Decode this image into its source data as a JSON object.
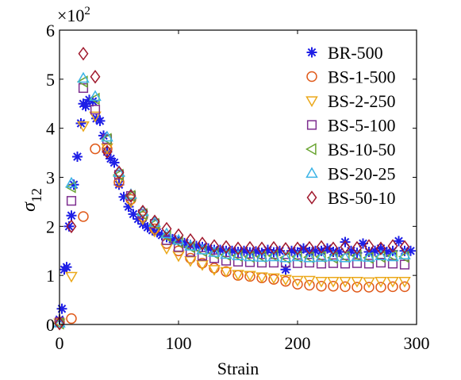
{
  "chart_data": {
    "type": "scatter",
    "xlabel": "Strain",
    "ylabel_main": "σ",
    "ylabel_sub": "12",
    "y_exponent_label": "×10",
    "y_exponent_power": "2",
    "xlim": [
      0,
      300
    ],
    "ylim": [
      0,
      6
    ],
    "xticks": [
      "0",
      "100",
      "200",
      "300"
    ],
    "yticks": [
      "0",
      "1",
      "2",
      "3",
      "4",
      "5",
      "6"
    ],
    "grid": false,
    "legend_position": "top-right",
    "series": [
      {
        "name": "BR-500",
        "marker": "asterisk",
        "color": "#1f1fe6",
        "x": [
          0,
          2,
          4,
          6,
          8,
          10,
          12,
          15,
          18,
          20,
          22,
          25,
          28,
          31,
          34,
          37,
          40,
          43,
          46,
          50,
          54,
          58,
          62,
          66,
          70,
          74,
          78,
          82,
          86,
          90,
          95,
          100,
          105,
          110,
          115,
          120,
          125,
          130,
          135,
          140,
          145,
          150,
          155,
          160,
          165,
          170,
          175,
          180,
          185,
          190,
          195,
          200,
          205,
          210,
          215,
          220,
          225,
          230,
          235,
          240,
          245,
          250,
          255,
          260,
          265,
          270,
          275,
          280,
          285,
          290,
          295
        ],
        "y": [
          0.1,
          0.32,
          1.12,
          1.17,
          2.0,
          2.22,
          2.85,
          3.42,
          4.1,
          4.5,
          4.45,
          4.58,
          4.55,
          4.2,
          4.15,
          3.85,
          3.52,
          3.38,
          3.3,
          2.85,
          2.6,
          2.4,
          2.25,
          2.15,
          2.05,
          1.98,
          1.92,
          1.88,
          1.82,
          1.78,
          1.74,
          1.7,
          1.66,
          1.62,
          1.6,
          1.58,
          1.55,
          1.52,
          1.52,
          1.5,
          1.5,
          1.48,
          1.5,
          1.47,
          1.49,
          1.46,
          1.52,
          1.47,
          1.5,
          1.12,
          1.5,
          1.47,
          1.55,
          1.48,
          1.5,
          1.5,
          1.55,
          1.48,
          1.48,
          1.68,
          1.5,
          1.46,
          1.65,
          1.48,
          1.5,
          1.55,
          1.48,
          1.5,
          1.7,
          1.5,
          1.5
        ]
      },
      {
        "name": "BS-1-500",
        "marker": "circle",
        "color": "#e05a1a",
        "x": [
          0,
          10,
          20,
          30,
          40,
          50,
          60,
          70,
          80,
          90,
          100,
          110,
          120,
          130,
          140,
          150,
          160,
          170,
          180,
          190,
          200,
          210,
          220,
          230,
          240,
          250,
          260,
          270,
          280,
          290
        ],
        "y": [
          0.05,
          0.12,
          2.2,
          3.58,
          3.58,
          2.9,
          2.55,
          2.2,
          1.95,
          1.65,
          1.5,
          1.35,
          1.25,
          1.15,
          1.08,
          1.0,
          0.98,
          0.95,
          0.92,
          0.88,
          0.82,
          0.8,
          0.78,
          0.78,
          0.77,
          0.76,
          0.76,
          0.76,
          0.77,
          0.77
        ]
      },
      {
        "name": "BS-2-250",
        "marker": "triangle-down",
        "color": "#eba81a",
        "x": [
          0,
          10,
          20,
          30,
          40,
          50,
          60,
          70,
          80,
          90,
          100,
          110,
          120,
          130,
          140,
          150,
          160,
          170,
          180,
          190,
          200,
          210,
          220,
          230,
          240,
          250,
          260,
          270,
          280,
          290
        ],
        "y": [
          0.03,
          0.98,
          4.05,
          4.25,
          3.6,
          2.95,
          2.5,
          2.15,
          1.9,
          1.55,
          1.4,
          1.3,
          1.22,
          1.12,
          1.08,
          1.02,
          1.0,
          0.97,
          0.95,
          0.92,
          0.9,
          0.9,
          0.88,
          0.88,
          0.88,
          0.88,
          0.87,
          0.88,
          0.88,
          0.88
        ]
      },
      {
        "name": "BS-5-100",
        "marker": "square",
        "color": "#7d2e8f",
        "x": [
          0,
          10,
          20,
          30,
          40,
          50,
          60,
          70,
          80,
          90,
          100,
          110,
          120,
          130,
          140,
          150,
          160,
          170,
          180,
          190,
          200,
          210,
          220,
          230,
          240,
          250,
          260,
          270,
          280,
          290
        ],
        "y": [
          0.05,
          2.52,
          4.82,
          4.38,
          3.78,
          3.05,
          2.62,
          2.25,
          2.05,
          1.72,
          1.58,
          1.48,
          1.4,
          1.35,
          1.3,
          1.28,
          1.27,
          1.26,
          1.26,
          1.26,
          1.25,
          1.26,
          1.24,
          1.25,
          1.24,
          1.25,
          1.24,
          1.26,
          1.24,
          1.22
        ]
      },
      {
        "name": "BS-10-50",
        "marker": "triangle-left",
        "color": "#6aa532",
        "x": [
          0,
          10,
          20,
          30,
          40,
          50,
          60,
          70,
          80,
          90,
          100,
          110,
          120,
          130,
          140,
          150,
          160,
          170,
          180,
          190,
          200,
          210,
          220,
          230,
          240,
          250,
          260,
          270,
          280,
          290
        ],
        "y": [
          0.02,
          2.8,
          4.95,
          4.6,
          3.78,
          3.05,
          2.62,
          2.25,
          2.05,
          1.8,
          1.68,
          1.58,
          1.5,
          1.45,
          1.42,
          1.4,
          1.38,
          1.38,
          1.4,
          1.36,
          1.38,
          1.37,
          1.38,
          1.36,
          1.38,
          1.4,
          1.36,
          1.38,
          1.4,
          1.38
        ]
      },
      {
        "name": "BS-20-25",
        "marker": "triangle-up",
        "color": "#3cb4e6",
        "x": [
          0,
          10,
          20,
          30,
          40,
          50,
          60,
          70,
          80,
          90,
          100,
          110,
          120,
          130,
          140,
          150,
          160,
          170,
          180,
          190,
          200,
          210,
          220,
          230,
          240,
          250,
          260,
          270,
          280,
          290
        ],
        "y": [
          0.03,
          2.88,
          5.02,
          4.65,
          3.82,
          3.1,
          2.65,
          2.3,
          2.08,
          1.85,
          1.72,
          1.6,
          1.52,
          1.47,
          1.43,
          1.4,
          1.38,
          1.37,
          1.38,
          1.36,
          1.38,
          1.36,
          1.37,
          1.38,
          1.36,
          1.38,
          1.37,
          1.4,
          1.38,
          1.42
        ]
      },
      {
        "name": "BS-50-10",
        "marker": "diamond",
        "color": "#a0192d",
        "x": [
          0,
          10,
          20,
          30,
          40,
          50,
          60,
          70,
          80,
          90,
          100,
          110,
          120,
          130,
          140,
          150,
          160,
          170,
          180,
          190,
          200,
          210,
          220,
          230,
          240,
          250,
          260,
          270,
          280,
          290
        ],
        "y": [
          0.02,
          2.0,
          5.52,
          5.05,
          3.52,
          3.1,
          2.62,
          2.3,
          2.1,
          1.95,
          1.82,
          1.72,
          1.65,
          1.6,
          1.58,
          1.55,
          1.56,
          1.55,
          1.56,
          1.54,
          1.55,
          1.56,
          1.58,
          1.55,
          1.58,
          1.56,
          1.6,
          1.55,
          1.6,
          1.58
        ]
      }
    ]
  }
}
